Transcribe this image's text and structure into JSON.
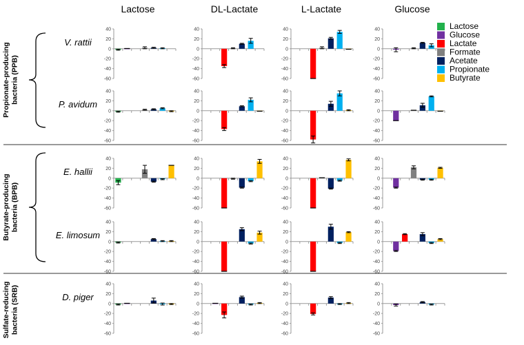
{
  "chart_data": {
    "type": "bar",
    "ylim": [
      -60,
      40
    ],
    "yticks": [
      40,
      20,
      0,
      -20,
      -40,
      -60
    ],
    "substrates": [
      "Lactose",
      "DL-Lactate",
      "L-Lactate",
      "Glucose"
    ],
    "metabolites": [
      "Lactose",
      "Glucose",
      "Lactate",
      "Formate",
      "Acetate",
      "Propionate",
      "Butyrate"
    ],
    "colors": [
      "#22b14c",
      "#7030a0",
      "#ff0000",
      "#808080",
      "#002060",
      "#00b0f0",
      "#ffc000"
    ],
    "legend_position": "top-right",
    "groups": [
      {
        "label": "Propionate-producing bacteria (PPB)",
        "organisms": [
          0,
          1
        ]
      },
      {
        "label": "Butyrate-producing bacteria (BPB)",
        "organisms": [
          2,
          3
        ]
      },
      {
        "label": "Sulfate-reducing bacteria (SRB)",
        "organisms": [
          4
        ]
      }
    ],
    "organisms": [
      {
        "name": "V. rattii",
        "panels": [
          {
            "values": [
              -2,
              0.5,
              0,
              2,
              2,
              1,
              0
            ],
            "errors": [
              1,
              0,
              0,
              2,
              1,
              1,
              0
            ]
          },
          {
            "values": [
              0,
              0,
              -35,
              1,
              10,
              16,
              0
            ],
            "errors": [
              0,
              0,
              3,
              1,
              1,
              5,
              0
            ]
          },
          {
            "values": [
              0,
              0,
              -60,
              2,
              21,
              34,
              -1
            ],
            "errors": [
              0,
              0,
              0,
              2,
              2,
              3,
              0
            ]
          },
          {
            "values": [
              0,
              -2,
              0,
              1,
              12,
              7,
              -1
            ],
            "errors": [
              0,
              4,
              0,
              1,
              1,
              3,
              0
            ]
          }
        ]
      },
      {
        "name": "P. avidum",
        "panels": [
          {
            "values": [
              -2,
              0,
              0,
              2,
              3,
              5,
              -1
            ],
            "errors": [
              1,
              0,
              0,
              1,
              1,
              1,
              1
            ]
          },
          {
            "values": [
              0,
              0,
              -37,
              0,
              9,
              22,
              -1
            ],
            "errors": [
              0,
              0,
              3,
              0,
              1,
              4,
              0
            ]
          },
          {
            "values": [
              0,
              0,
              -58,
              0,
              14,
              35,
              1
            ],
            "errors": [
              0,
              0,
              7,
              0,
              5,
              5,
              1
            ]
          },
          {
            "values": [
              0,
              -20,
              0,
              1,
              11,
              29,
              -1
            ],
            "errors": [
              0,
              0,
              0,
              0,
              4,
              1,
              0
            ]
          }
        ]
      },
      {
        "name": "E. hallii",
        "panels": [
          {
            "values": [
              -9,
              0,
              0,
              18,
              -7,
              -2,
              26
            ],
            "errors": [
              4,
              0,
              0,
              8,
              1,
              1,
              0
            ]
          },
          {
            "values": [
              0,
              0,
              -60,
              -1,
              -19,
              -6,
              34
            ],
            "errors": [
              0,
              0,
              0,
              1,
              1,
              1,
              4
            ]
          },
          {
            "values": [
              0,
              0,
              -60,
              1,
              -21,
              -5,
              37
            ],
            "errors": [
              0,
              0,
              0,
              0,
              1,
              1,
              2
            ]
          },
          {
            "values": [
              0,
              -19,
              0,
              22,
              -3,
              -3,
              21
            ],
            "errors": [
              0,
              1,
              0,
              3,
              1,
              1,
              1
            ]
          }
        ]
      },
      {
        "name": "E. limosum",
        "panels": [
          {
            "values": [
              -2,
              0,
              0,
              0,
              5,
              1,
              1
            ],
            "errors": [
              1,
              0,
              0,
              0,
              1,
              1,
              1
            ]
          },
          {
            "values": [
              0,
              0,
              -60,
              0,
              25,
              -4,
              18
            ],
            "errors": [
              0,
              0,
              0,
              0,
              3,
              1,
              3
            ]
          },
          {
            "values": [
              0,
              0,
              -60,
              0,
              30,
              -3,
              19
            ],
            "errors": [
              0,
              0,
              0,
              0,
              5,
              1,
              1
            ]
          },
          {
            "values": [
              0,
              -19,
              15,
              0,
              15,
              -3,
              5
            ],
            "errors": [
              0,
              1,
              1,
              0,
              3,
              1,
              1
            ]
          }
        ]
      },
      {
        "name": "D. piger",
        "panels": [
          {
            "values": [
              -2,
              0.5,
              0,
              0,
              6,
              -1,
              -1
            ],
            "errors": [
              1,
              0,
              0,
              0,
              5,
              2,
              1
            ]
          },
          {
            "values": [
              0,
              0.5,
              -23,
              0,
              13,
              -2,
              1
            ],
            "errors": [
              0,
              0,
              6,
              0,
              2,
              1,
              1
            ]
          },
          {
            "values": [
              0,
              0,
              -21,
              0,
              12,
              -1,
              1
            ],
            "errors": [
              0,
              0,
              2,
              0,
              2,
              1,
              1
            ]
          },
          {
            "values": [
              0,
              -3,
              0,
              0,
              3,
              -2,
              0
            ],
            "errors": [
              0,
              2,
              0,
              0,
              1,
              1,
              0
            ]
          }
        ]
      }
    ]
  }
}
